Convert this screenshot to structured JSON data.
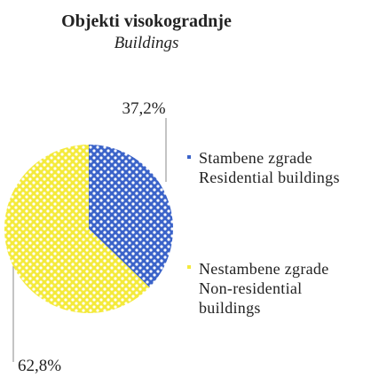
{
  "chart_data": {
    "type": "pie",
    "title": "Objekti visokogradnje",
    "subtitle": "Buildings",
    "categories": [
      "Stambene zgrade\nResidential buildings",
      "Nestambene zgrade\nNon-residential\nbuildings"
    ],
    "values": [
      37.2,
      62.8
    ],
    "value_labels": [
      "37,2%",
      "62,8%"
    ],
    "colors": [
      "#3b63c9",
      "#f4ea3c"
    ]
  }
}
